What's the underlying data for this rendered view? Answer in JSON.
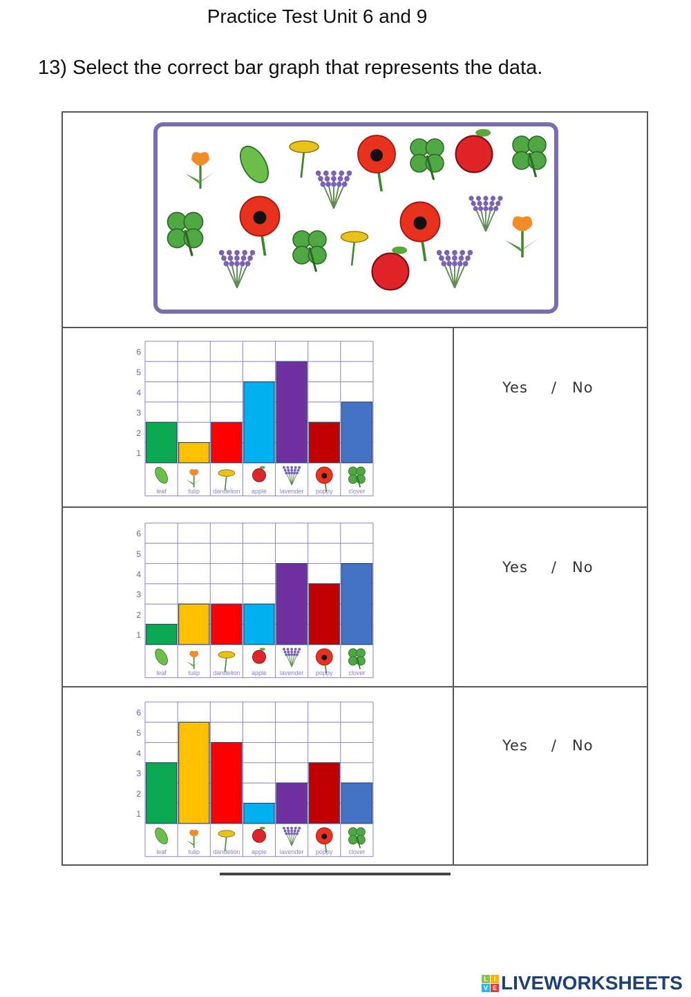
{
  "header": {
    "title": "Practice Test Unit 6 and 9",
    "question": "13) Select the correct bar graph that represents the data."
  },
  "answers": [
    {
      "yes": "Yes",
      "sep": "/",
      "no": "No"
    },
    {
      "yes": "Yes",
      "sep": "/",
      "no": "No"
    },
    {
      "yes": "Yes",
      "sep": "/",
      "no": "No"
    }
  ],
  "colors": {
    "leaf": "#0aa84f",
    "tulip": "#ffc000",
    "dandelion": "#ff0000",
    "apple": "#00b0f0",
    "lavender": "#7030a0",
    "poppy": "#c00000",
    "clover": "#4472c4",
    "grid": "#8b80c8",
    "frame": "#7a6bb5"
  },
  "chart_data": [
    {
      "type": "bar",
      "categories": [
        "leaf",
        "tulip",
        "dandelion",
        "apple",
        "lavender",
        "poppy",
        "clover"
      ],
      "values": [
        2,
        1,
        2,
        4,
        5,
        2,
        3
      ],
      "yticks": [
        1,
        2,
        3,
        4,
        5,
        6
      ],
      "ylim": [
        0,
        6
      ],
      "grid": true
    },
    {
      "type": "bar",
      "categories": [
        "leaf",
        "tulip",
        "dandelion",
        "apple",
        "lavender",
        "poppy",
        "clover"
      ],
      "values": [
        1,
        2,
        2,
        2,
        4,
        3,
        4
      ],
      "yticks": [
        1,
        2,
        3,
        4,
        5,
        6
      ],
      "ylim": [
        0,
        6
      ],
      "grid": true
    },
    {
      "type": "bar",
      "categories": [
        "leaf",
        "tulip",
        "dandelion",
        "apple",
        "lavender",
        "poppy",
        "clover"
      ],
      "values": [
        3,
        5,
        4,
        1,
        2,
        3,
        2
      ],
      "yticks": [
        1,
        2,
        3,
        4,
        5,
        6
      ],
      "ylim": [
        0,
        6
      ],
      "grid": true
    }
  ],
  "footer": {
    "logo": "LIVEWORKSHEETS",
    "logo_cube": [
      "L",
      "I",
      "V",
      "E"
    ]
  }
}
